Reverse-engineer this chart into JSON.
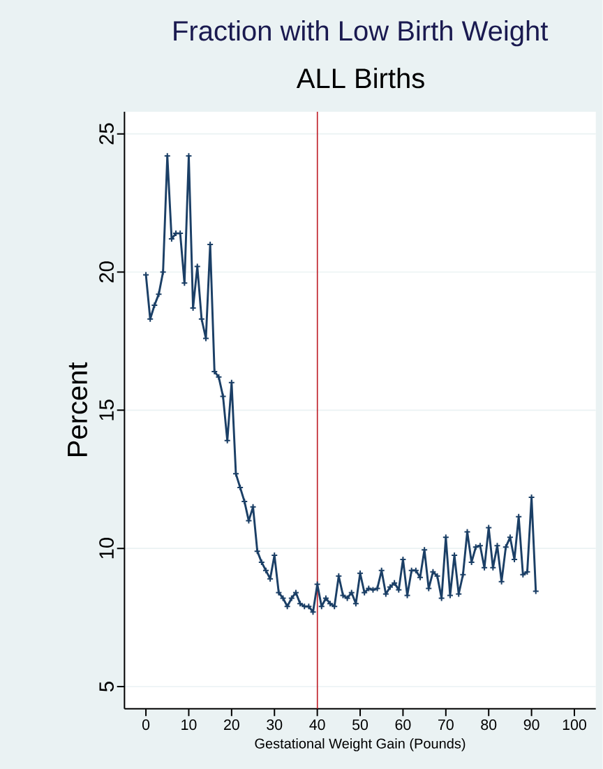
{
  "chart_data": {
    "type": "line",
    "title": "Fraction with Low Birth Weight",
    "subtitle": "ALL Births",
    "xlabel": "Gestational Weight Gain  (Pounds)",
    "ylabel": "Percent",
    "x": [
      0,
      1,
      2,
      3,
      4,
      5,
      6,
      7,
      8,
      9,
      10,
      11,
      12,
      13,
      14,
      15,
      16,
      17,
      18,
      19,
      20,
      21,
      22,
      23,
      24,
      25,
      26,
      27,
      28,
      29,
      30,
      31,
      32,
      33,
      34,
      35,
      36,
      37,
      38,
      39,
      40,
      41,
      42,
      43,
      44,
      45,
      46,
      47,
      48,
      49,
      50,
      51,
      52,
      53,
      54,
      55,
      56,
      57,
      58,
      59,
      60,
      61,
      62,
      63,
      64,
      65,
      66,
      67,
      68,
      69,
      70,
      71,
      72,
      73,
      74,
      75,
      76,
      77,
      78,
      79,
      80,
      81,
      82,
      83,
      84,
      85,
      86,
      87,
      88,
      89,
      90,
      91
    ],
    "series": [
      {
        "color": "#1b3f66",
        "values": [
          19.9,
          18.3,
          18.8,
          19.2,
          20.0,
          24.2,
          21.2,
          21.4,
          21.4,
          19.6,
          24.2,
          18.7,
          20.2,
          18.3,
          17.6,
          21.0,
          16.4,
          16.2,
          15.5,
          13.9,
          16.0,
          12.7,
          12.2,
          11.7,
          11.0,
          11.5,
          9.9,
          9.5,
          9.2,
          8.9,
          9.75,
          8.4,
          8.2,
          7.9,
          8.2,
          8.4,
          8.0,
          7.9,
          7.9,
          7.7,
          8.7,
          7.9,
          8.2,
          8.0,
          7.9,
          9.0,
          8.3,
          8.2,
          8.4,
          8.0,
          9.1,
          8.4,
          8.55,
          8.5,
          8.55,
          9.2,
          8.35,
          8.6,
          8.75,
          8.5,
          9.6,
          8.3,
          9.2,
          9.2,
          8.95,
          9.95,
          8.55,
          9.15,
          9.0,
          8.2,
          10.4,
          8.3,
          9.75,
          8.35,
          9.05,
          10.6,
          9.5,
          10.05,
          10.1,
          9.3,
          10.75,
          9.3,
          10.1,
          8.8,
          10.05,
          10.4,
          9.6,
          11.15,
          9.05,
          9.15,
          11.85,
          8.45
        ]
      }
    ],
    "xlim": [
      -5,
      105
    ],
    "ylim": [
      4.2,
      25.8
    ],
    "xticks": [
      0,
      10,
      20,
      30,
      40,
      50,
      60,
      70,
      80,
      90,
      100
    ],
    "yticks": [
      5,
      10,
      15,
      20,
      25
    ],
    "ref_lines": [
      {
        "axis": "x",
        "value": 40,
        "color": "#c0202a"
      }
    ],
    "grid": "y",
    "legend": false,
    "marker": "cross",
    "line_style": "solid"
  }
}
